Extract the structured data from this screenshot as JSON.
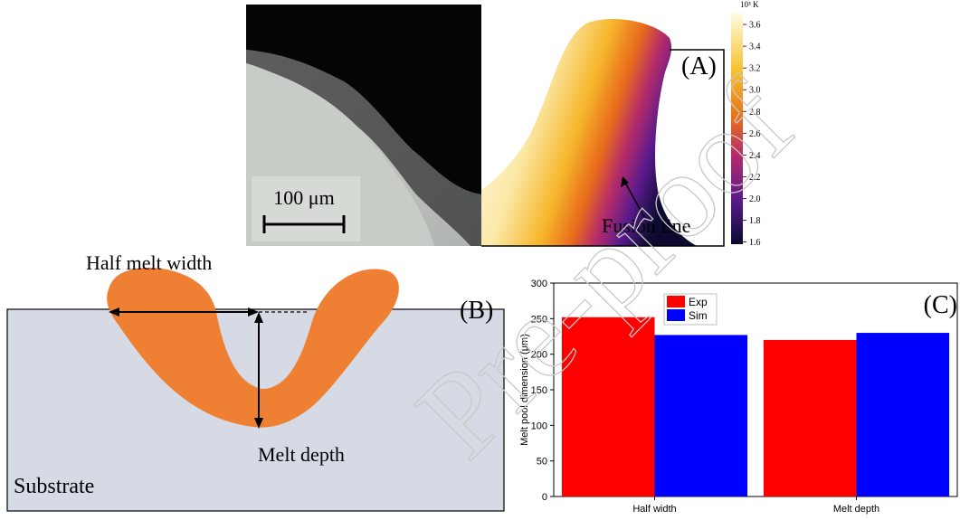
{
  "panel_a": {
    "label": "(A)",
    "scale_bar": "100 μm",
    "annotation": "Fusion line",
    "colorbar": {
      "unit": "10³ K",
      "lim": [
        1.58,
        3.7
      ],
      "ticks": [
        1.6,
        1.8,
        {
          "value": 2,
          "label": "2.0"
        },
        2.2,
        2.4,
        2.6,
        2.8,
        {
          "value": 3,
          "label": "3.0"
        },
        3.2,
        3.4,
        3.6
      ]
    }
  },
  "panel_b": {
    "label": "(B)",
    "width_label": "Half melt width",
    "depth_label": "Melt depth",
    "substrate_label": "Substrate"
  },
  "watermark": "Pre-proof",
  "chart_data": {
    "type": "bar",
    "annotation": "(C)",
    "y_label": "Melt pool dimension (μm)",
    "categories": [
      "Half width",
      "Melt depth"
    ],
    "series": [
      {
        "name": "Exp",
        "color": "#ff0000",
        "values": [
          252,
          220
        ]
      },
      {
        "name": "Sim",
        "color": "#0000ff",
        "values": [
          227,
          230
        ]
      }
    ],
    "ylim": [
      0,
      300
    ],
    "yticks": [
      0,
      50,
      100,
      150,
      200,
      250,
      300
    ],
    "legend": "upper left"
  }
}
